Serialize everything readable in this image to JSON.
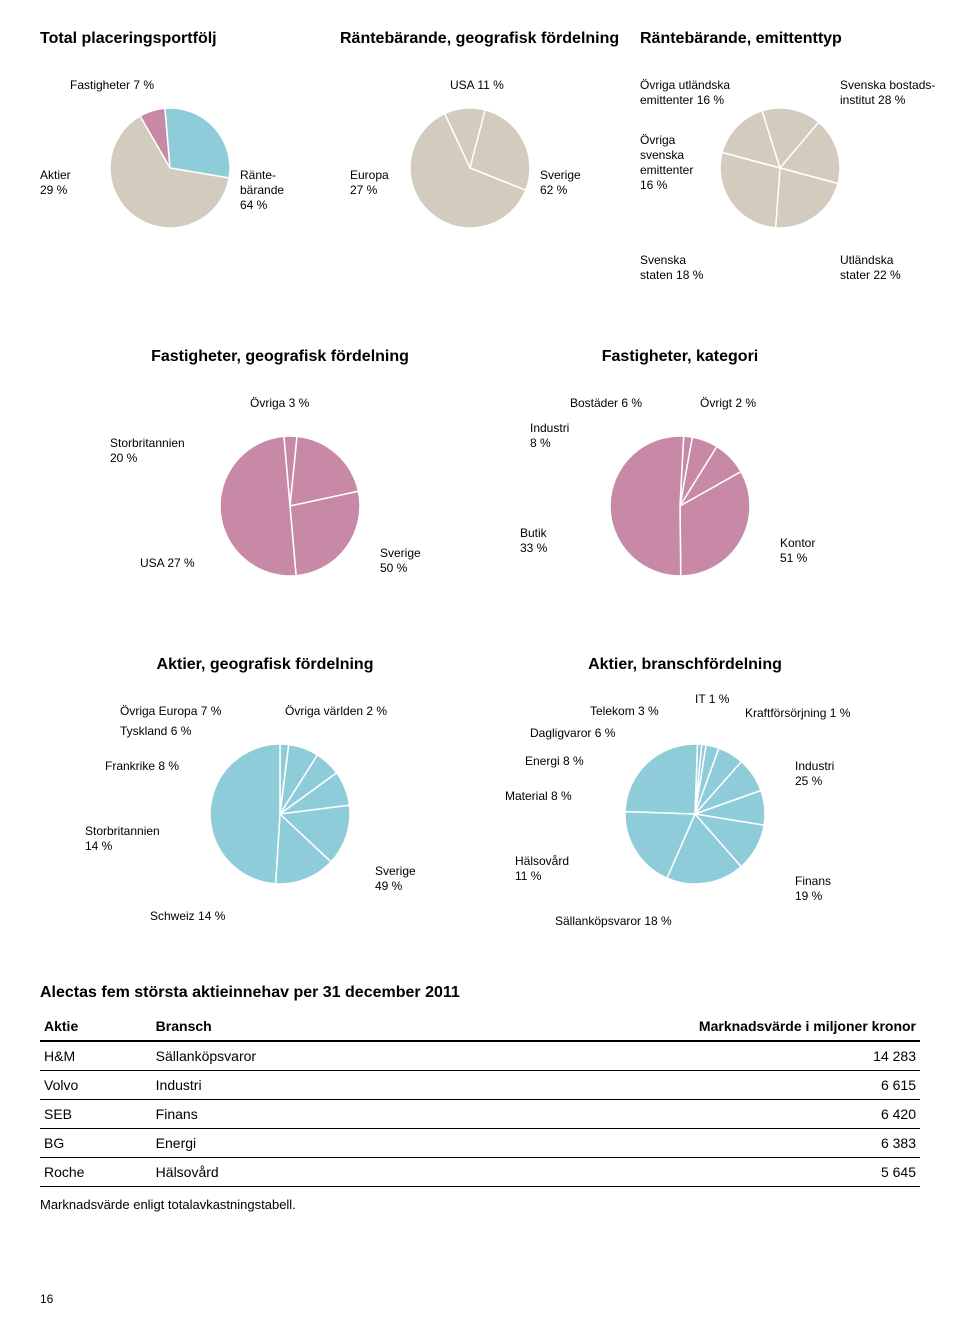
{
  "colors": {
    "beige": "#d3cbbd",
    "blue": "#8fccd9",
    "pink": "#c889a6",
    "stroke": "#ffffff",
    "text": "#000000"
  },
  "fontsize": {
    "title": 14,
    "label": 12
  },
  "row1": {
    "chart1": {
      "title": "Total placeringsportfölj",
      "type": "pie",
      "radius": 60,
      "slices": [
        {
          "label": "Fastigheter 7 %",
          "value": 7,
          "color": "#c889a6"
        },
        {
          "label": "Aktier\n29 %",
          "value": 29,
          "color": "#8fccd9"
        },
        {
          "label": "Ränte-\nbärande\n64 %",
          "value": 64,
          "color": "#d3cbbd"
        }
      ]
    },
    "chart2": {
      "title": "Räntebärande, geografisk fördelning",
      "type": "pie",
      "radius": 60,
      "slices": [
        {
          "label": "USA 11 %",
          "value": 11,
          "color": "#d3cbbd"
        },
        {
          "label": "Europa\n27 %",
          "value": 27,
          "color": "#d3cbbd"
        },
        {
          "label": "Sverige\n62 %",
          "value": 62,
          "color": "#d3cbbd"
        }
      ]
    },
    "chart3": {
      "title": "Räntebärande, emittenttyp",
      "type": "pie",
      "radius": 60,
      "slices": [
        {
          "label": "Övriga utländska\nemittenter 16 %",
          "value": 16,
          "color": "#d3cbbd"
        },
        {
          "label": "Övriga\nsvenska\nemittenter\n16 %",
          "value": 16,
          "color": "#d3cbbd"
        },
        {
          "label": "Svenska\nstaten 18 %",
          "value": 18,
          "color": "#d3cbbd"
        },
        {
          "label": "Utländska\nstater 22 %",
          "value": 22,
          "color": "#d3cbbd"
        },
        {
          "label": "Svenska bostads-\ninstitut 28 %",
          "value": 28,
          "color": "#d3cbbd"
        }
      ]
    }
  },
  "row2": {
    "chart4": {
      "title": "Fastigheter, geografisk fördelning",
      "type": "pie",
      "radius": 70,
      "slices": [
        {
          "label": "Övriga 3 %",
          "value": 3,
          "color": "#c889a6"
        },
        {
          "label": "Storbritannien\n20 %",
          "value": 20,
          "color": "#c889a6"
        },
        {
          "label": "USA 27 %",
          "value": 27,
          "color": "#c889a6"
        },
        {
          "label": "Sverige\n50 %",
          "value": 50,
          "color": "#c889a6"
        }
      ]
    },
    "chart5": {
      "title": "Fastigheter, kategori",
      "type": "pie",
      "radius": 70,
      "slices": [
        {
          "label": "Övrigt 2 %",
          "value": 2,
          "color": "#c889a6"
        },
        {
          "label": "Bostäder 6 %",
          "value": 6,
          "color": "#c889a6"
        },
        {
          "label": "Industri\n8 %",
          "value": 8,
          "color": "#c889a6"
        },
        {
          "label": "Butik\n33 %",
          "value": 33,
          "color": "#c889a6"
        },
        {
          "label": "Kontor\n51 %",
          "value": 51,
          "color": "#c889a6"
        }
      ]
    }
  },
  "row3": {
    "chart6": {
      "title": "Aktier, geografisk fördelning",
      "type": "pie",
      "radius": 70,
      "slices": [
        {
          "label": "Övriga världen 2 %",
          "value": 2,
          "color": "#8fccd9"
        },
        {
          "label": "Övriga Europa 7 %",
          "value": 7,
          "color": "#8fccd9"
        },
        {
          "label": "Tyskland 6 %",
          "value": 6,
          "color": "#8fccd9"
        },
        {
          "label": "Frankrike 8 %",
          "value": 8,
          "color": "#8fccd9"
        },
        {
          "label": "Storbritannien\n14 %",
          "value": 14,
          "color": "#8fccd9"
        },
        {
          "label": "Schweiz 14 %",
          "value": 14,
          "color": "#8fccd9"
        },
        {
          "label": "Sverige\n49 %",
          "value": 49,
          "color": "#8fccd9"
        }
      ]
    },
    "chart7": {
      "title": "Aktier, branschfördelning",
      "type": "pie",
      "radius": 70,
      "slices": [
        {
          "label": "Kraftförsörjning 1 %",
          "value": 1,
          "color": "#8fccd9"
        },
        {
          "label": "IT 1 %",
          "value": 1,
          "color": "#8fccd9"
        },
        {
          "label": "Telekom 3 %",
          "value": 3,
          "color": "#8fccd9"
        },
        {
          "label": "Dagligvaror 6 %",
          "value": 6,
          "color": "#8fccd9"
        },
        {
          "label": "Energi 8 %",
          "value": 8,
          "color": "#8fccd9"
        },
        {
          "label": "Material 8 %",
          "value": 8,
          "color": "#8fccd9"
        },
        {
          "label": "Hälsovård\n11 %",
          "value": 11,
          "color": "#8fccd9"
        },
        {
          "label": "Sällanköpsvaror 18 %",
          "value": 18,
          "color": "#8fccd9"
        },
        {
          "label": "Finans\n19 %",
          "value": 19,
          "color": "#8fccd9"
        },
        {
          "label": "Industri\n25 %",
          "value": 25,
          "color": "#8fccd9"
        }
      ]
    }
  },
  "table": {
    "title": "Alectas fem största aktieinnehav per 31 december 2011",
    "columns": [
      "Aktie",
      "Bransch",
      "Marknadsvärde i miljoner kronor"
    ],
    "rows": [
      [
        "H&M",
        "Sällanköpsvaror",
        "14 283"
      ],
      [
        "Volvo",
        "Industri",
        "6 615"
      ],
      [
        "SEB",
        "Finans",
        "6 420"
      ],
      [
        "BG",
        "Energi",
        "6 383"
      ],
      [
        "Roche",
        "Hälsovård",
        "5 645"
      ]
    ],
    "footnote": "Marknadsvärde enligt totalavkastningstabell."
  },
  "page_number": "16"
}
